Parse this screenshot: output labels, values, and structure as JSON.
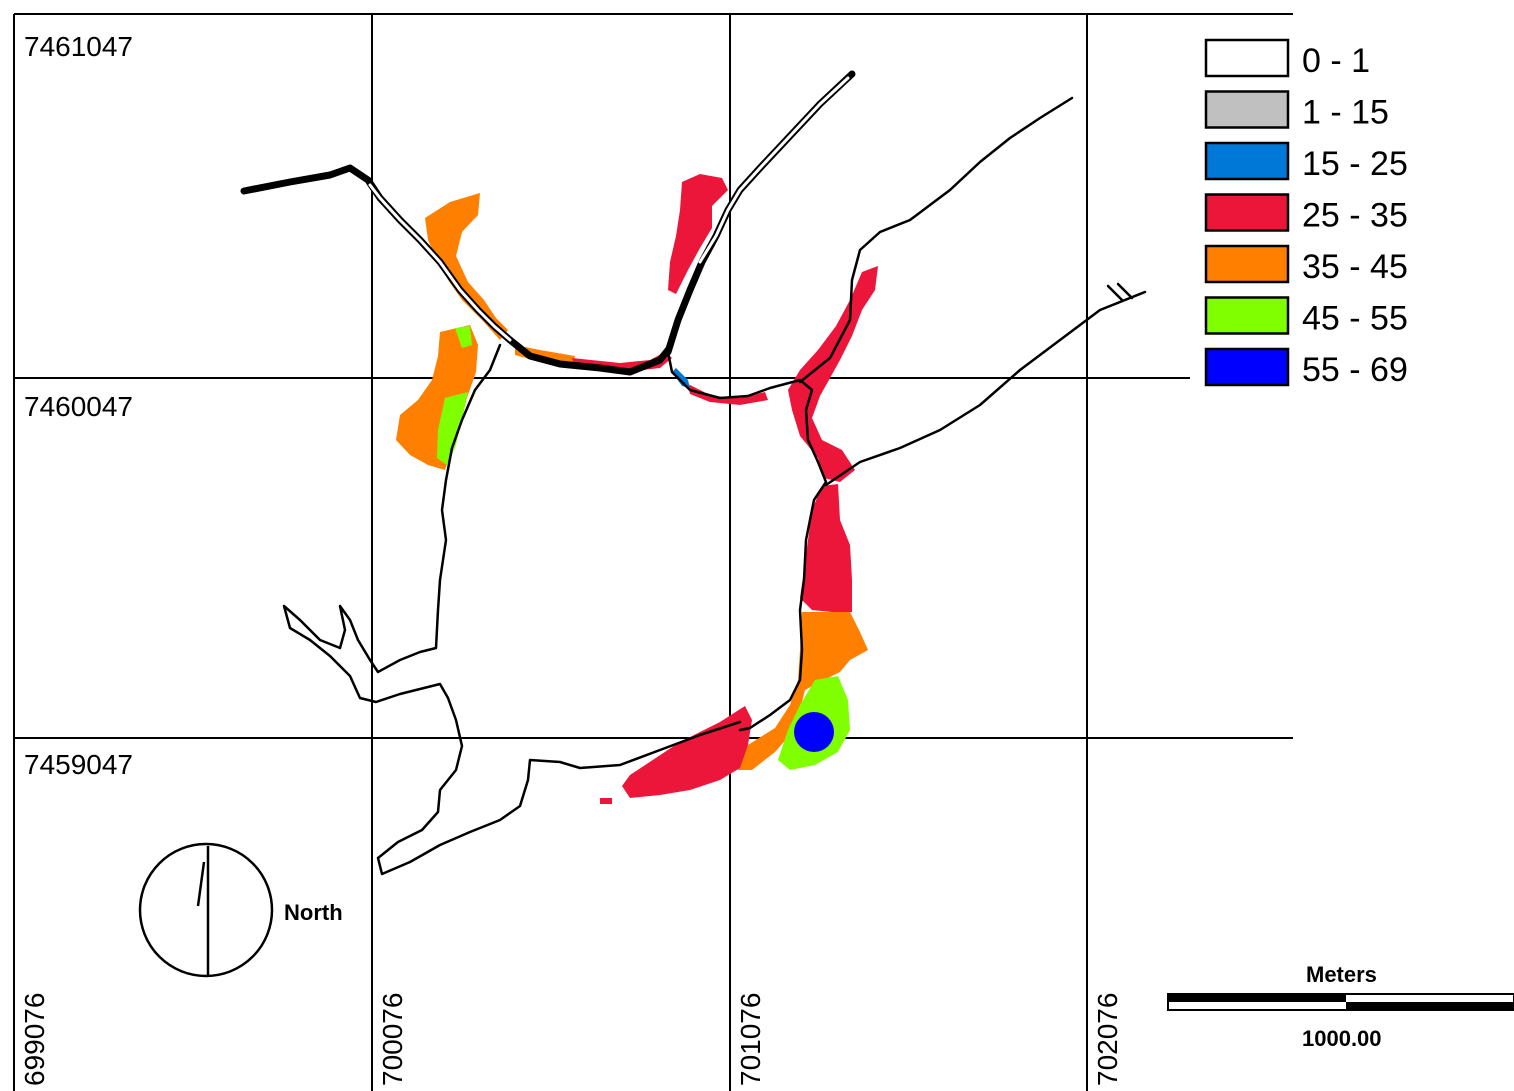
{
  "colors": {
    "class_0_1": "#ffffff",
    "class_1_15": "#c0c0c0",
    "class_15_25": "#0078d7",
    "class_25_35": "#eb1639",
    "class_35_45": "#ff8000",
    "class_45_55": "#80ff00",
    "class_55_69": "#0000ff"
  },
  "grid": {
    "northings": [
      "7461047",
      "7460047",
      "7459047"
    ],
    "eastings": [
      "699076",
      "700076",
      "701076",
      "702076"
    ]
  },
  "legend": {
    "items": [
      {
        "label": "0 - 1",
        "color": "#ffffff"
      },
      {
        "label": "1 - 15",
        "color": "#c0c0c0"
      },
      {
        "label": "15 - 25",
        "color": "#0078d7"
      },
      {
        "label": "25 - 35",
        "color": "#eb1639"
      },
      {
        "label": "35 - 45",
        "color": "#ff8000"
      },
      {
        "label": "45 - 55",
        "color": "#80ff00"
      },
      {
        "label": "55 - 69",
        "color": "#0000ff"
      }
    ]
  },
  "north_arrow": {
    "label": "North"
  },
  "scale_bar": {
    "units_label": "Meters",
    "distance_label": "1000.00"
  }
}
